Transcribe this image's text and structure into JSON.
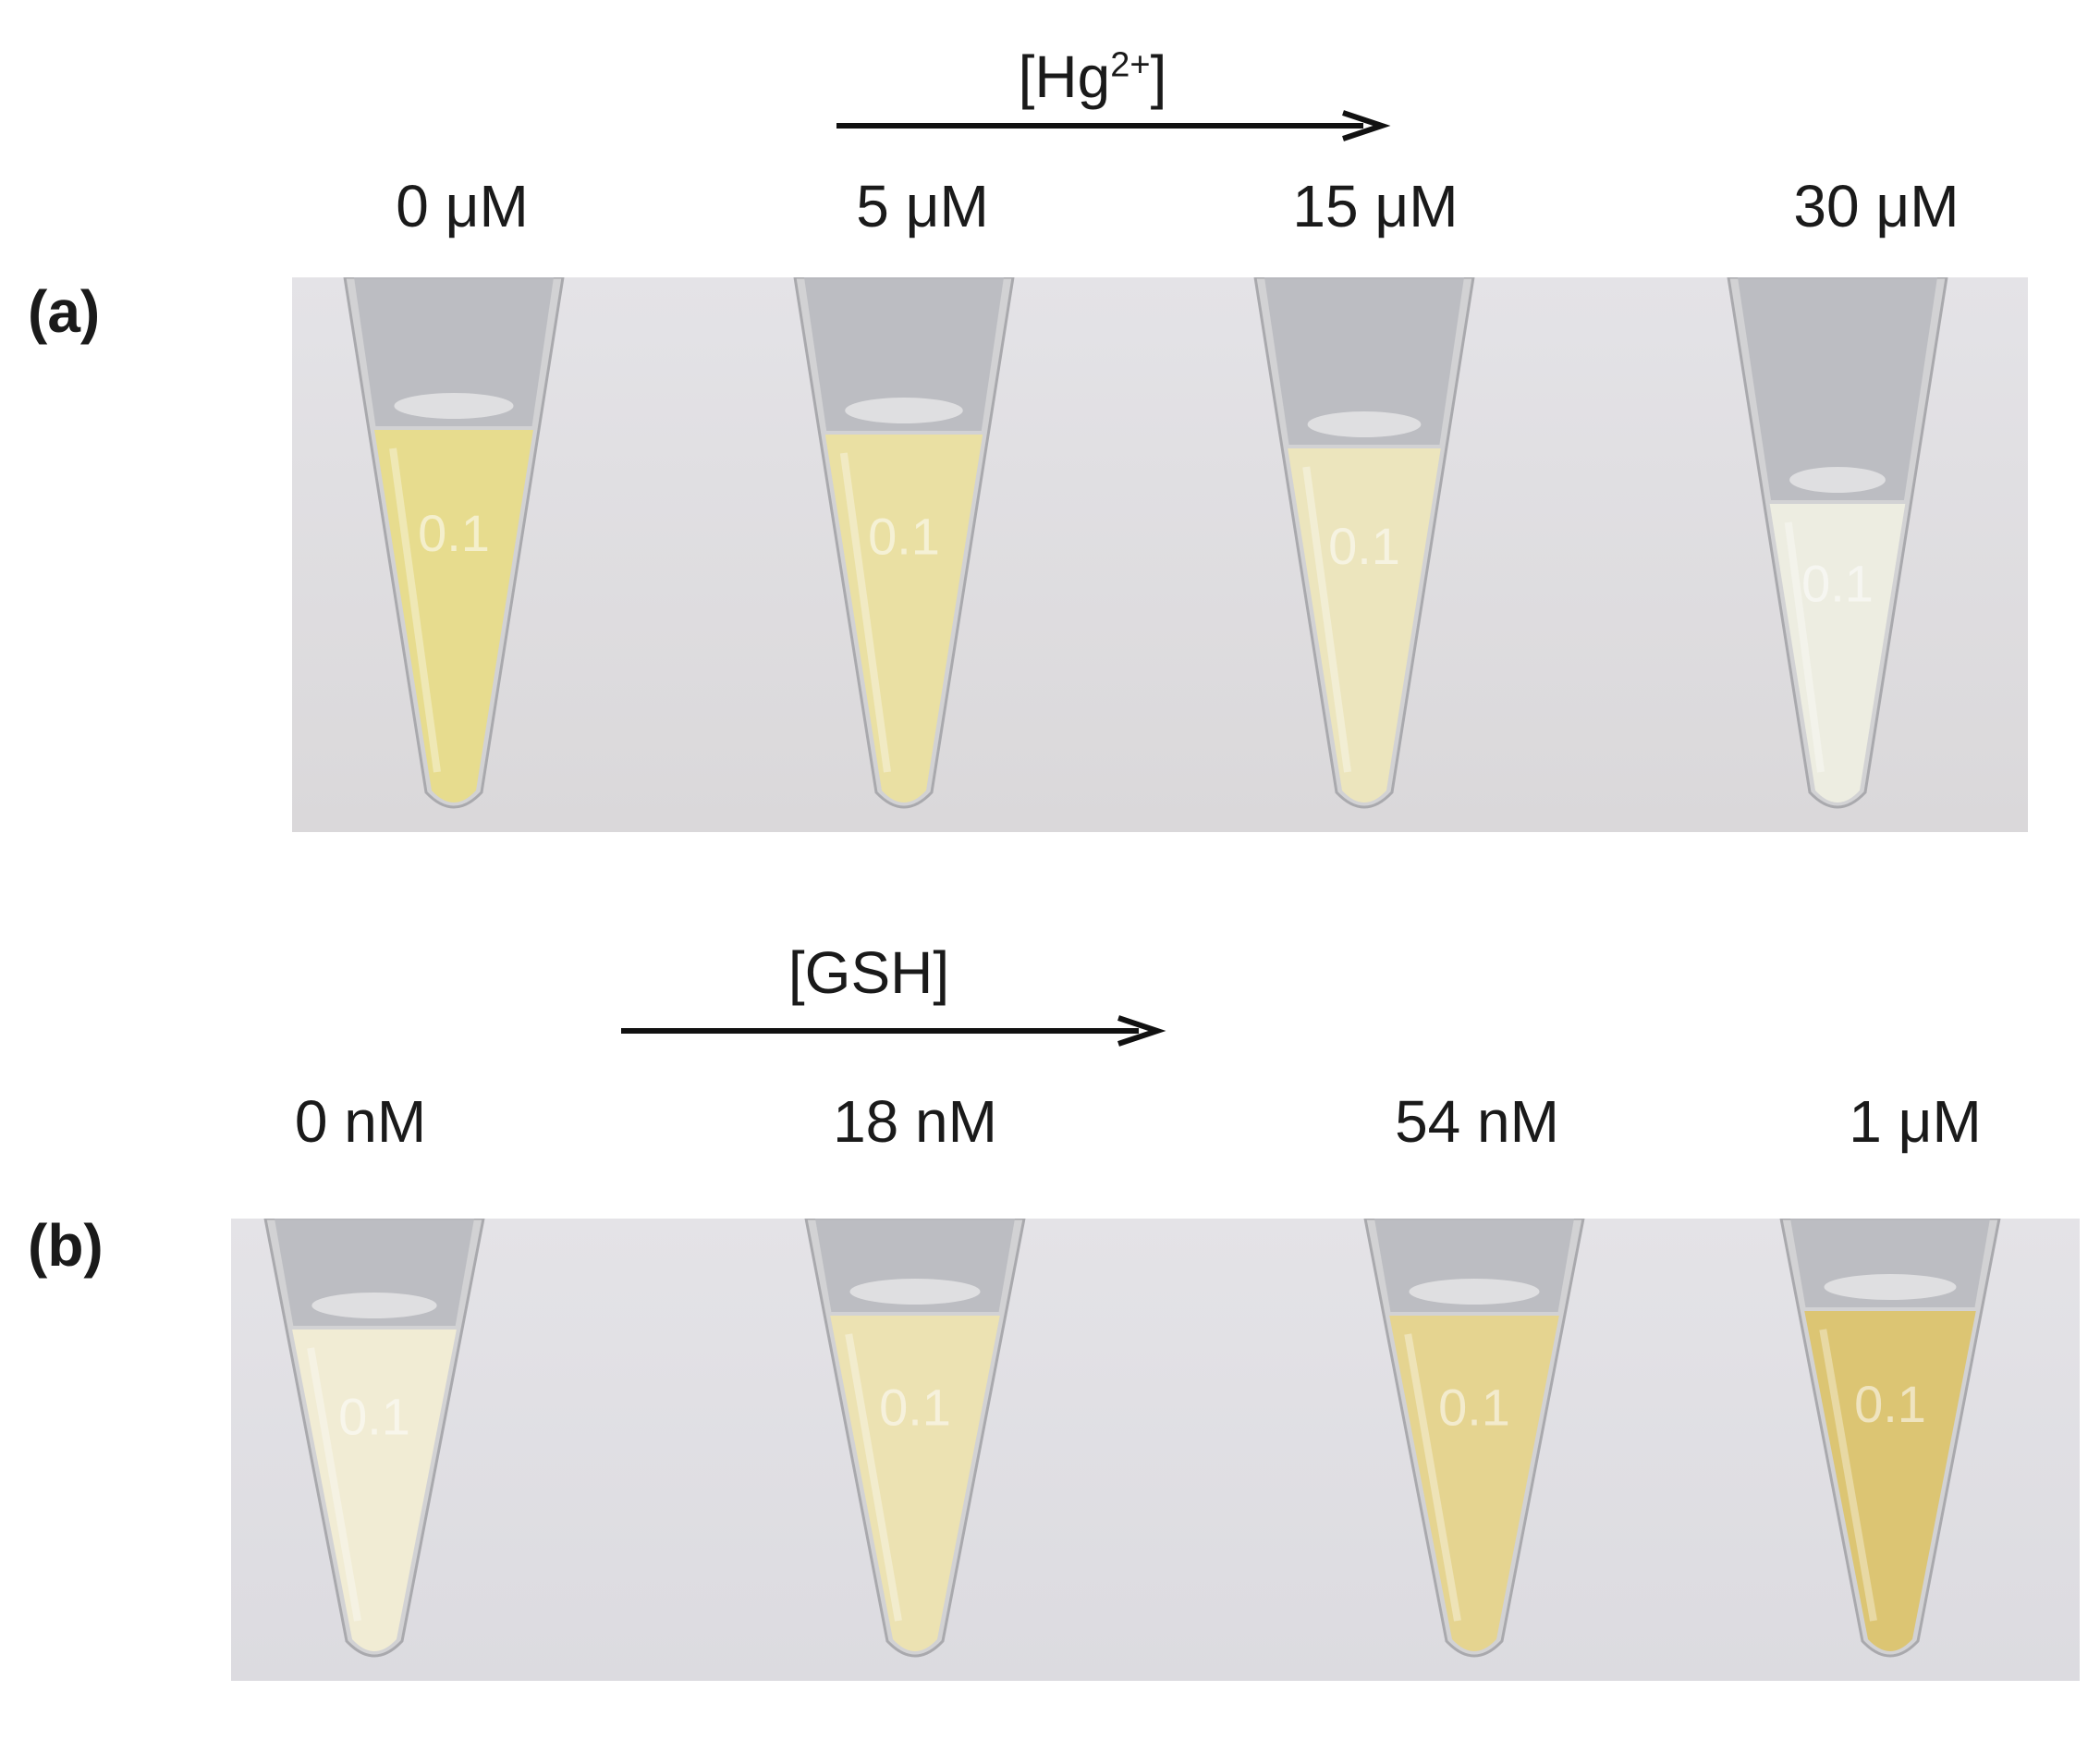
{
  "panel_a": {
    "letter": "(a)",
    "arrow_label_main": "[Hg",
    "arrow_label_sup": "2+",
    "arrow_label_close": "]",
    "concentrations": [
      "0 μM",
      "5 μM",
      "15 μM",
      "30 μM"
    ],
    "tube_mark": "0.1",
    "photo_background": "#dad8da",
    "liquid_colors": [
      "#e8dc8a",
      "#ebe0a0",
      "#ede6bc",
      "#eeeee2"
    ]
  },
  "panel_b": {
    "letter": "(b)",
    "arrow_label": "[GSH]",
    "concentrations": [
      "0 nM",
      "18 nM",
      "54 nM",
      "1 μM"
    ],
    "tube_mark": "0.1",
    "photo_background": "#dcdbe0",
    "liquid_colors": [
      "#f2edd4",
      "#ede3b0",
      "#e6d48c",
      "#dcc46e"
    ]
  }
}
